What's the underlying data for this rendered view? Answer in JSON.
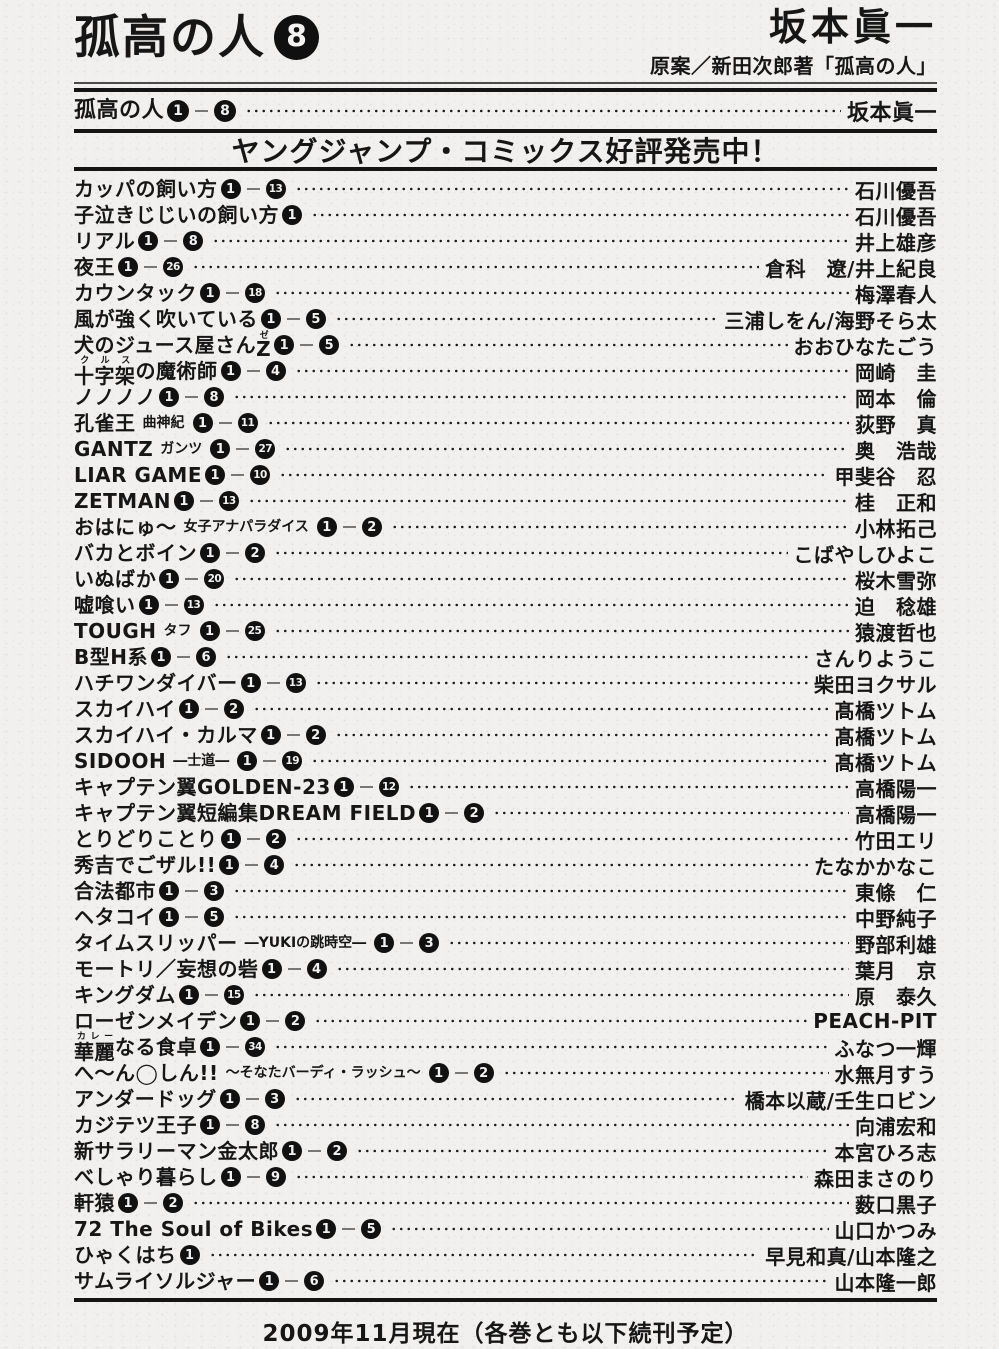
{
  "colors": {
    "ink": "#161616",
    "paper": "#f1f0ee",
    "badge_fill": "#111111",
    "badge_text": "#f3f2f0"
  },
  "masthead": {
    "title": "孤高の人",
    "volume": "8",
    "author": "坂本眞一",
    "original_credit": "原案／新田次郎著「孤高の人」"
  },
  "series_row": {
    "parts": [
      {
        "t": "孤高の人"
      }
    ],
    "start": "1",
    "end": "8",
    "author": "坂本眞一"
  },
  "banner": {
    "text": "ヤングジャンプ・コミックス好評発売中！"
  },
  "footer": {
    "text": "2009年11月現在（各巻とも以下続刊予定）"
  },
  "books": [
    {
      "parts": [
        {
          "t": "カッパの飼い方"
        }
      ],
      "start": "1",
      "end": "13",
      "author": "石川優吾"
    },
    {
      "parts": [
        {
          "t": "子泣きじじいの飼い方"
        }
      ],
      "start": "1",
      "end": null,
      "author": "石川優吾"
    },
    {
      "parts": [
        {
          "t": "リアル"
        }
      ],
      "start": "1",
      "end": "8",
      "author": "井上雄彦"
    },
    {
      "parts": [
        {
          "t": "夜王"
        }
      ],
      "start": "1",
      "end": "26",
      "author": "倉科　遼/井上紀良"
    },
    {
      "parts": [
        {
          "t": "カウンタック"
        }
      ],
      "start": "1",
      "end": "18",
      "author": "梅澤春人"
    },
    {
      "parts": [
        {
          "t": "風が強く吹いている"
        }
      ],
      "start": "1",
      "end": "5",
      "author": "三浦しをん/海野そら太"
    },
    {
      "parts": [
        {
          "t": "犬のジュース屋さん"
        },
        {
          "t": "Z",
          "ruby": "ゼ"
        }
      ],
      "start": "1",
      "end": "5",
      "author": "おおひなたごう"
    },
    {
      "parts": [
        {
          "t": "十字架",
          "ruby": "クルス"
        },
        {
          "t": "の魔術師"
        }
      ],
      "start": "1",
      "end": "4",
      "author": "岡崎　圭"
    },
    {
      "parts": [
        {
          "t": "ノノノノ"
        }
      ],
      "start": "1",
      "end": "8",
      "author": "岡本　倫"
    },
    {
      "parts": [
        {
          "t": "孔雀王"
        },
        {
          "t": "曲神紀",
          "small": true
        }
      ],
      "start": "1",
      "end": "11",
      "author": "荻野　真"
    },
    {
      "parts": [
        {
          "t": "GANTZ"
        },
        {
          "t": "ガンツ",
          "small": true
        }
      ],
      "start": "1",
      "end": "27",
      "author": "奥　浩哉"
    },
    {
      "parts": [
        {
          "t": "LIAR GAME"
        }
      ],
      "start": "1",
      "end": "10",
      "author": "甲斐谷　忍"
    },
    {
      "parts": [
        {
          "t": "ZETMAN"
        }
      ],
      "start": "1",
      "end": "13",
      "author": "桂　正和"
    },
    {
      "parts": [
        {
          "t": "おはにゅ〜"
        },
        {
          "t": "女子アナパラダイス",
          "small": true
        }
      ],
      "start": "1",
      "end": "2",
      "author": "小林拓己"
    },
    {
      "parts": [
        {
          "t": "バカとボイン"
        }
      ],
      "start": "1",
      "end": "2",
      "author": "こばやしひよこ"
    },
    {
      "parts": [
        {
          "t": "いぬばか"
        }
      ],
      "start": "1",
      "end": "20",
      "author": "桜木雪弥"
    },
    {
      "parts": [
        {
          "t": "嘘喰い"
        }
      ],
      "start": "1",
      "end": "13",
      "author": "迫　稔雄"
    },
    {
      "parts": [
        {
          "t": "TOUGH"
        },
        {
          "t": "タフ",
          "small": true
        }
      ],
      "start": "1",
      "end": "25",
      "author": "猿渡哲也"
    },
    {
      "parts": [
        {
          "t": "B型H系"
        }
      ],
      "start": "1",
      "end": "6",
      "author": "さんりようこ"
    },
    {
      "parts": [
        {
          "t": "ハチワンダイバー"
        }
      ],
      "start": "1",
      "end": "13",
      "author": "柴田ヨクサル"
    },
    {
      "parts": [
        {
          "t": "スカイハイ"
        }
      ],
      "start": "1",
      "end": "2",
      "author": "髙橋ツトム"
    },
    {
      "parts": [
        {
          "t": "スカイハイ・カルマ"
        }
      ],
      "start": "1",
      "end": "2",
      "author": "髙橋ツトム"
    },
    {
      "parts": [
        {
          "t": "SIDOOH"
        },
        {
          "t": "―士道―",
          "small": true
        }
      ],
      "start": "1",
      "end": "19",
      "author": "髙橋ツトム"
    },
    {
      "parts": [
        {
          "t": "キャプテン翼GOLDEN-23"
        }
      ],
      "start": "1",
      "end": "12",
      "author": "高橋陽一"
    },
    {
      "parts": [
        {
          "t": "キャプテン翼短編集DREAM FIELD"
        }
      ],
      "start": "1",
      "end": "2",
      "author": "高橋陽一"
    },
    {
      "parts": [
        {
          "t": "とりどりことり"
        }
      ],
      "start": "1",
      "end": "2",
      "author": "竹田エリ"
    },
    {
      "parts": [
        {
          "t": "秀吉でごザル!!"
        }
      ],
      "start": "1",
      "end": "4",
      "author": "たなかかなこ"
    },
    {
      "parts": [
        {
          "t": "合法都市"
        }
      ],
      "start": "1",
      "end": "3",
      "author": "東條　仁"
    },
    {
      "parts": [
        {
          "t": "ヘタコイ"
        }
      ],
      "start": "1",
      "end": "5",
      "author": "中野純子"
    },
    {
      "parts": [
        {
          "t": "タイムスリッパー"
        },
        {
          "t": "―YUKIの跳時空―",
          "small": true
        }
      ],
      "start": "1",
      "end": "3",
      "author": "野部利雄"
    },
    {
      "parts": [
        {
          "t": "モートリ／妄想の砦"
        }
      ],
      "start": "1",
      "end": "4",
      "author": "葉月　京"
    },
    {
      "parts": [
        {
          "t": "キングダム"
        }
      ],
      "start": "1",
      "end": "15",
      "author": "原　泰久"
    },
    {
      "parts": [
        {
          "t": "ローゼンメイデン"
        }
      ],
      "start": "1",
      "end": "2",
      "author": "PEACH-PIT"
    },
    {
      "parts": [
        {
          "t": "華麗",
          "ruby": "カレー"
        },
        {
          "t": "なる食卓"
        }
      ],
      "start": "1",
      "end": "34",
      "author": "ふなつ一輝"
    },
    {
      "parts": [
        {
          "t": "へ〜ん◯しん!!"
        },
        {
          "t": "〜そなたバーディ・ラッシュ〜",
          "small": true
        }
      ],
      "start": "1",
      "end": "2",
      "author": "水無月すう"
    },
    {
      "parts": [
        {
          "t": "アンダードッグ"
        }
      ],
      "start": "1",
      "end": "3",
      "author": "橋本以蔵/壬生ロビン"
    },
    {
      "parts": [
        {
          "t": "カジテツ王子"
        }
      ],
      "start": "1",
      "end": "8",
      "author": "向浦宏和"
    },
    {
      "parts": [
        {
          "t": "新サラリーマン金太郎"
        }
      ],
      "start": "1",
      "end": "2",
      "author": "本宮ひろ志"
    },
    {
      "parts": [
        {
          "t": "べしゃり暮らし"
        }
      ],
      "start": "1",
      "end": "9",
      "author": "森田まさのり"
    },
    {
      "parts": [
        {
          "t": "軒猿"
        }
      ],
      "start": "1",
      "end": "2",
      "author": "薮口黒子"
    },
    {
      "parts": [
        {
          "t": "72 The Soul of Bikes"
        }
      ],
      "start": "1",
      "end": "5",
      "author": "山口かつみ"
    },
    {
      "parts": [
        {
          "t": "ひゃくはち"
        }
      ],
      "start": "1",
      "end": null,
      "author": "早見和真/山本隆之"
    },
    {
      "parts": [
        {
          "t": "サムライソルジャー"
        }
      ],
      "start": "1",
      "end": "6",
      "author": "山本隆一郎"
    }
  ]
}
